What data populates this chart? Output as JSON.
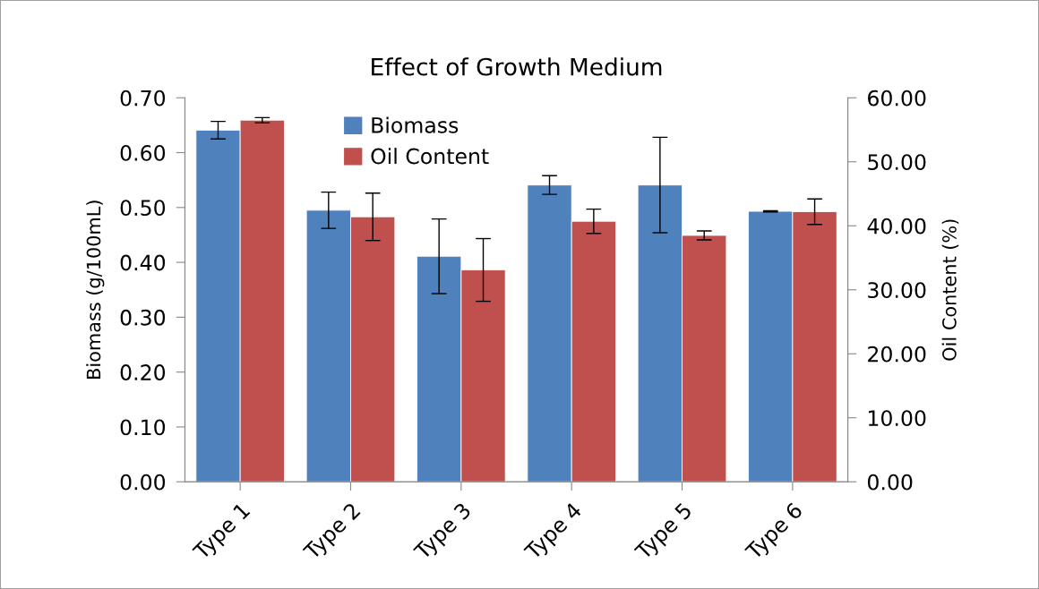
{
  "chart_data": {
    "type": "bar",
    "title": "Effect of Growth Medium",
    "ylabel": "Biomass (g/100mL)",
    "y2label": "Oil Content (%)",
    "categories": [
      "Type 1",
      "Type 2",
      "Type 3",
      "Type 4",
      "Type 5",
      "Type 6"
    ],
    "series": [
      {
        "name": "Biomass",
        "color": "#4f81bd",
        "values": [
          0.641,
          0.495,
          0.411,
          0.541,
          0.541,
          0.493
        ],
        "errors": [
          0.016,
          0.033,
          0.068,
          0.017,
          0.087,
          0.001
        ]
      },
      {
        "name": "Oil Content",
        "color": "#c0504d",
        "axis": "y2",
        "values": [
          56.5,
          41.4,
          33.1,
          40.7,
          38.5,
          42.2
        ],
        "errors": [
          0.4,
          3.7,
          4.9,
          1.9,
          0.7,
          2.0
        ]
      }
    ],
    "ylim": [
      0,
      0.7
    ],
    "yticks": [
      {
        "value": 0,
        "label": "0.00"
      },
      {
        "value": 0.1,
        "label": "0.10"
      },
      {
        "value": 0.2,
        "label": "0.20"
      },
      {
        "value": 0.3,
        "label": "0.30"
      },
      {
        "value": 0.4,
        "label": "0.40"
      },
      {
        "value": 0.5,
        "label": "0.50"
      },
      {
        "value": 0.6,
        "label": "0.60"
      },
      {
        "value": 0.7,
        "label": "0.70"
      }
    ],
    "y2lim": [
      0,
      60
    ],
    "y2ticks": [
      {
        "value": 0,
        "label": "0.00"
      },
      {
        "value": 10,
        "label": "10.00"
      },
      {
        "value": 20,
        "label": "20.00"
      },
      {
        "value": 30,
        "label": "30.00"
      },
      {
        "value": 40,
        "label": "40.00"
      },
      {
        "value": 50,
        "label": "50.00"
      },
      {
        "value": 60,
        "label": "60.00"
      }
    ],
    "legend": "top",
    "grid": false
  }
}
